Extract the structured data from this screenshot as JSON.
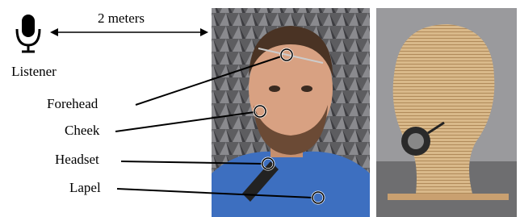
{
  "listener": {
    "label": "Listener"
  },
  "distance": {
    "label": "2 meters"
  },
  "microphones": [
    {
      "label": "Forehead"
    },
    {
      "label": "Cheek"
    },
    {
      "label": "Headset"
    },
    {
      "label": "Lapel"
    }
  ]
}
